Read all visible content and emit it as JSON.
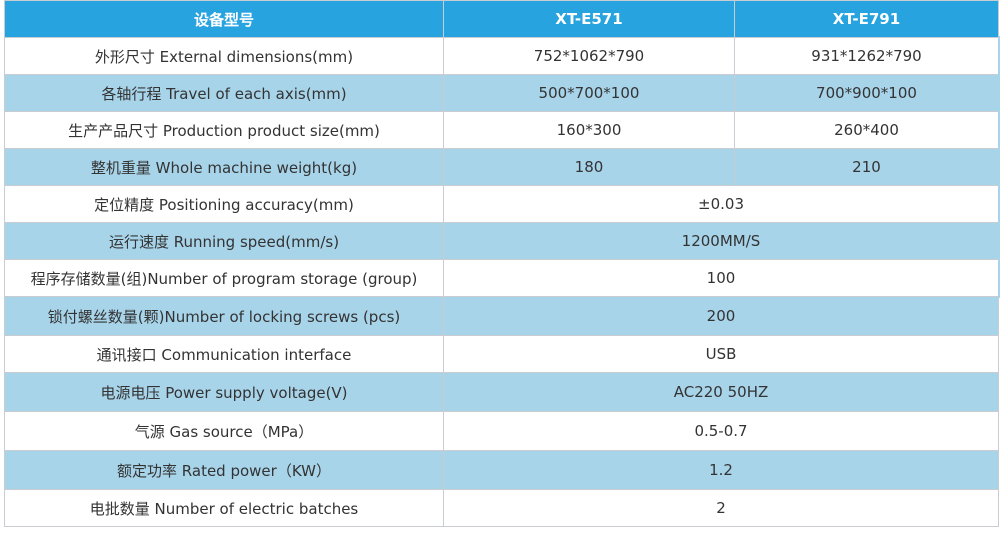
{
  "header": {
    "col1": "设备型号",
    "col2": "XT-E571",
    "col3": "XT-E791"
  },
  "rows": [
    {
      "label": "外形尺寸 External dimensions(mm)",
      "v1": "752*1062*790",
      "v2": "931*1262*790"
    },
    {
      "label": "各轴行程 Travel of each axis(mm)",
      "v1": "500*700*100",
      "v2": "700*900*100"
    },
    {
      "label": "生产产品尺寸 Production product size(mm)",
      "v1": "160*300",
      "v2": "260*400"
    },
    {
      "label": "整机重量 Whole machine weight(kg)",
      "v1": "180",
      "v2": "210"
    },
    {
      "label": "定位精度 Positioning accuracy(mm)",
      "v": "±0.03"
    },
    {
      "label": "运行速度 Running speed(mm/s)",
      "v": "1200MM/S"
    },
    {
      "label": "程序存储数量(组)Number of program storage (group)",
      "v": "100"
    },
    {
      "label": "锁付螺丝数量(颗)Number of locking screws (pcs)",
      "v": "200"
    },
    {
      "label": "通讯接口 Communication interface",
      "v": "USB"
    },
    {
      "label": "电源电压 Power supply voltage(V)",
      "v": "AC220 50HZ"
    },
    {
      "label": "气源 Gas source（MPa）",
      "v": "0.5-0.7"
    },
    {
      "label": "额定功率 Rated power（KW）",
      "v": "1.2"
    },
    {
      "label": "电批数量 Number of electric batches",
      "v": "2"
    }
  ]
}
